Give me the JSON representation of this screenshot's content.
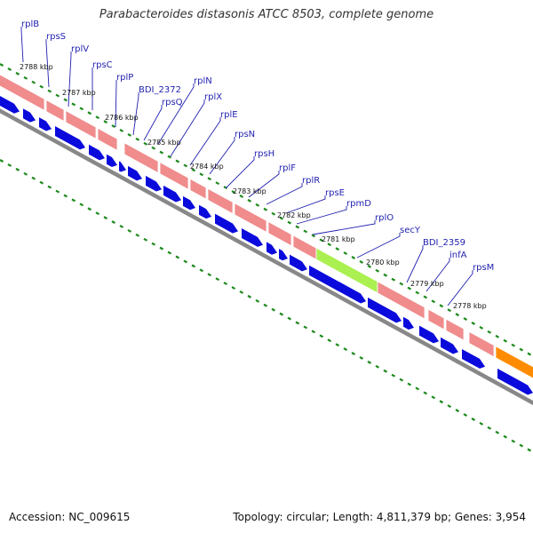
{
  "title": "Parabacteroides distasonis ATCC 8503, complete genome",
  "accession": "Accession: NC_009615",
  "summary": "Topology: circular; Length: 4,811,379 bp; Genes: 3,954",
  "colors": {
    "rrna_band": "#f08c8c",
    "cds": "#0a0adc",
    "highlight": "#aaf050",
    "orange": "#ff8c00",
    "backbone": "#888888",
    "ticks": "#1a8a1a",
    "label": "#1f1fb0"
  },
  "ticks": [
    "2788 kbp",
    "2787 kbp",
    "2786 kbp",
    "2785 kbp",
    "2784 kbp",
    "2783 kbp",
    "2782 kbp",
    "2781 kbp",
    "2780 kbp",
    "2779 kbp",
    "2778 kbp"
  ],
  "genes": [
    "rplB",
    "rpsS",
    "rplV",
    "rpsC",
    "rplP",
    "BDI_2372",
    "rpsQ",
    "rplN",
    "rplX",
    "rplE",
    "rpsN",
    "rpsH",
    "rplF",
    "rplR",
    "rpsE",
    "rpmD",
    "rplO",
    "secY",
    "BDI_2359",
    "infA",
    "rpsM"
  ]
}
